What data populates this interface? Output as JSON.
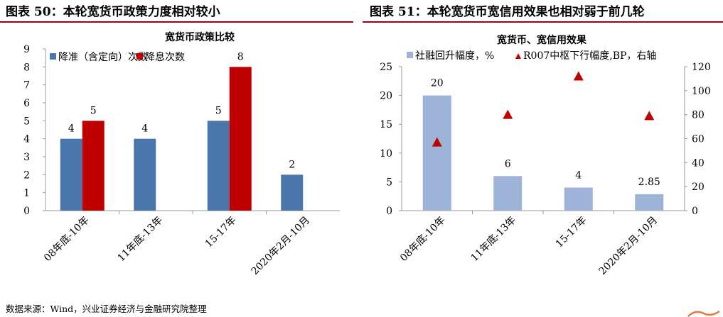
{
  "header": {
    "left_title": "图表 50：本轮宽货币政策力度相对较小",
    "right_title": "图表 51：本轮宽货币宽信用效果也相对弱于前几轮"
  },
  "footer": {
    "source": "数据来源：Wind，兴业证券经济与金融研究院整理"
  },
  "colors": {
    "rule": "#a50021",
    "blue": "#4a76ab",
    "red": "#c00000",
    "lightblue": "#9db3d8",
    "marker": "#c00000"
  },
  "chart_data": [
    {
      "type": "bar",
      "title": "宽货币政策比较",
      "categories": [
        "08年底-10年",
        "11年底-13年",
        "15-17年",
        "2020年2月-10月"
      ],
      "series": [
        {
          "name": "降准（含定向）次数",
          "values": [
            4,
            4,
            5,
            2
          ],
          "color": "#4a76ab"
        },
        {
          "name": "降息次数",
          "values": [
            5,
            null,
            8,
            null
          ],
          "color": "#c00000"
        }
      ],
      "data_labels": [
        [
          "4",
          "4",
          "5",
          "2"
        ],
        [
          "5",
          "",
          "8",
          ""
        ]
      ],
      "ylim": [
        0,
        9
      ],
      "yticks": [
        "0",
        "1",
        "2",
        "3",
        "4",
        "5",
        "6",
        "7",
        "8",
        "9"
      ],
      "legend": "top-left",
      "grid": false
    },
    {
      "type": "bar",
      "title": "宽货币、宽信用效果",
      "categories": [
        "08年底-10年",
        "11年底-13年",
        "15-17年",
        "2020年2月-10月"
      ],
      "series": [
        {
          "name": "社融回升幅度，%",
          "values": [
            20,
            6,
            4,
            2.85
          ],
          "color": "#9db3d8",
          "axis": "left",
          "kind": "bar"
        },
        {
          "name": "R007中枢下行幅度,BP，右轴",
          "values": [
            57,
            80,
            112,
            79
          ],
          "color": "#c00000",
          "axis": "right",
          "kind": "scatter"
        }
      ],
      "data_labels": [
        "20",
        "6",
        "4",
        "2.85"
      ],
      "ylim": [
        0,
        25
      ],
      "yticks": [
        "0",
        "5",
        "10",
        "15",
        "20",
        "25"
      ],
      "y2lim": [
        0,
        120
      ],
      "y2ticks": [
        "0",
        "20",
        "40",
        "60",
        "80",
        "100",
        "120"
      ],
      "legend": "top",
      "grid": false
    }
  ]
}
